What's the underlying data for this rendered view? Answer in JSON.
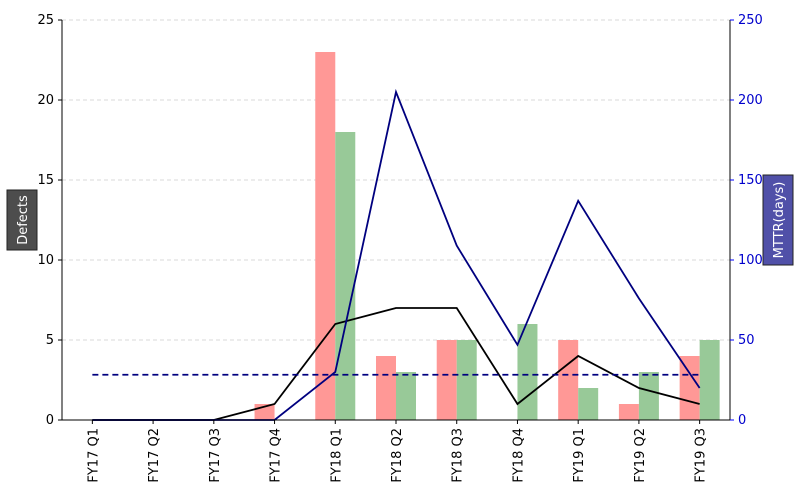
{
  "chart_data": {
    "type": "bar",
    "categories": [
      "FY17 Q1",
      "FY17 Q2",
      "FY17 Q3",
      "FY17 Q4",
      "FY18 Q1",
      "FY18 Q2",
      "FY18 Q3",
      "FY18 Q4",
      "FY19 Q1",
      "FY19 Q2",
      "FY19 Q3"
    ],
    "series": [
      {
        "kind": "bar",
        "axis": "left",
        "color": "#ff9896",
        "values": [
          0,
          0,
          0,
          1,
          23,
          4,
          5,
          0,
          5,
          1,
          4
        ]
      },
      {
        "kind": "bar",
        "axis": "left",
        "color": "#98c998",
        "values": [
          0,
          0,
          0,
          0,
          18,
          3,
          5,
          6,
          2,
          3,
          5
        ]
      },
      {
        "kind": "line",
        "axis": "left",
        "color": "#000000",
        "values": [
          0,
          0,
          0,
          1,
          6,
          7,
          7,
          1,
          4,
          2,
          1
        ]
      },
      {
        "kind": "line",
        "axis": "right",
        "color": "#00007f",
        "values": [
          0,
          0,
          0,
          0,
          30,
          205,
          109,
          47,
          137,
          76,
          20
        ]
      },
      {
        "kind": "hline",
        "axis": "right",
        "color": "#00007f",
        "dashed": true,
        "value": 28.3
      }
    ],
    "xlabel": "",
    "ylabel": "Defects",
    "y2label": "MTTR(days)",
    "ylim": [
      0,
      25
    ],
    "y2lim": [
      0,
      250
    ],
    "yticks": [
      "0",
      "5",
      "10",
      "15",
      "20",
      "25"
    ],
    "y2ticks": [
      "0",
      "50",
      "100",
      "150",
      "200",
      "250"
    ],
    "grid": "horizontal dashed",
    "right_axis_color": "#0000ff",
    "ylabel_box_color": "#4d4d4d",
    "y2label_box_color": "#5050a8"
  }
}
